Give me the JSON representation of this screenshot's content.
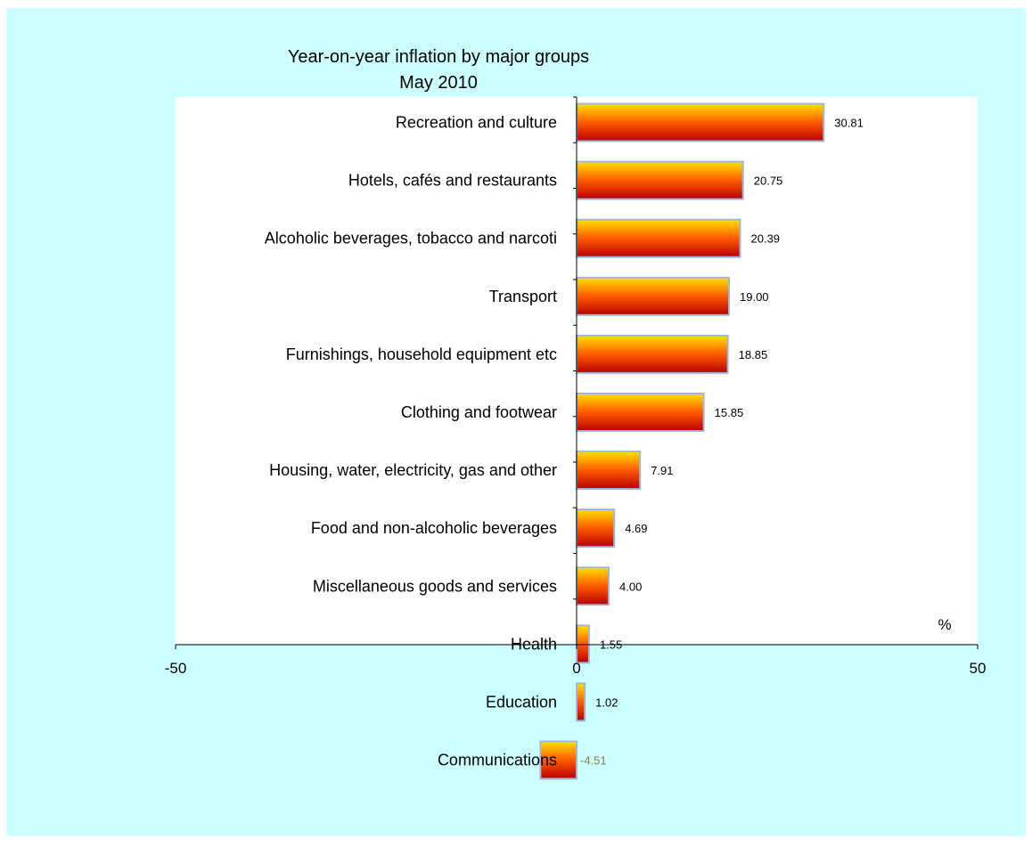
{
  "colors": {
    "background": "#ccffff",
    "plot_background": "#ffffff",
    "bar_top": "#ffe100",
    "bar_mid": "#ff5a00",
    "bar_bottom": "#b80000",
    "bar_outline": "#9db8e0",
    "negative_label": "#8a7a3a"
  },
  "chart_data": {
    "type": "bar",
    "orientation": "horizontal",
    "title": "Year-on-year inflation by major groups",
    "subtitle": "May 2010",
    "unit_label": "%",
    "categories": [
      "Recreation and culture",
      "Hotels, cafés and restaurants",
      "Alcoholic beverages, tobacco and narcoti",
      "Transport",
      "Furnishings, household equipment etc",
      "Clothing and footwear",
      "Housing, water, electricity, gas and other",
      "Food and non-alcoholic beverages",
      "Miscellaneous goods and services",
      "Health",
      "Education",
      "Communications"
    ],
    "values": [
      30.81,
      20.75,
      20.39,
      19.0,
      18.85,
      15.85,
      7.91,
      4.69,
      4.0,
      1.55,
      1.02,
      -4.51
    ],
    "value_labels": [
      "30.81",
      "20.75",
      "20.39",
      "19.00",
      "18.85",
      "15.85",
      "7.91",
      "4.69",
      "4.00",
      "1.55",
      "1.02",
      "-4.51"
    ],
    "xlim": [
      -50,
      50
    ],
    "x_ticks": [
      -50,
      0,
      50
    ],
    "x_tick_labels": [
      "-50",
      "0",
      "50"
    ],
    "grid": false,
    "legend": "none"
  }
}
